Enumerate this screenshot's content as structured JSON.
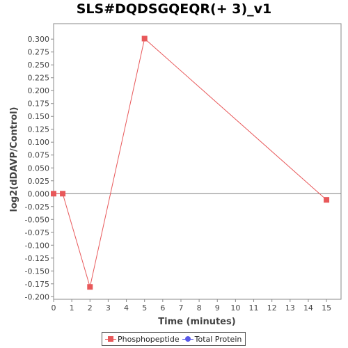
{
  "chart_data": {
    "type": "line",
    "title": "SLS#DQDSGQEQR(+ 3)_v1",
    "xlabel": "Time (minutes)",
    "ylabel": "log2(dDAVP/Control)",
    "xlim": [
      0,
      15.8
    ],
    "ylim": [
      -0.205,
      0.33
    ],
    "x_ticks": [
      0,
      1,
      2,
      3,
      4,
      5,
      6,
      7,
      8,
      9,
      10,
      11,
      12,
      13,
      14,
      15
    ],
    "y_ticks": [
      -0.2,
      -0.175,
      -0.15,
      -0.125,
      -0.1,
      -0.075,
      -0.05,
      -0.025,
      0.0,
      0.025,
      0.05,
      0.075,
      0.1,
      0.125,
      0.15,
      0.175,
      0.2,
      0.225,
      0.25,
      0.275,
      0.3
    ],
    "y_tick_labels": [
      "-0.200",
      "-0.175",
      "-0.150",
      "-0.125",
      "-0.100",
      "-0.075",
      "-0.050",
      "-0.025",
      "0.000",
      "0.025",
      "0.050",
      "0.075",
      "0.100",
      "0.125",
      "0.150",
      "0.175",
      "0.200",
      "0.225",
      "0.250",
      "0.275",
      "0.300"
    ],
    "zero_line": true,
    "grid": false,
    "legend_position": "bottom",
    "series": [
      {
        "name": "Phosphopeptide",
        "color": "#e8585a",
        "marker": "square",
        "x": [
          0,
          0.5,
          2,
          5,
          15
        ],
        "y": [
          0.0,
          0.0,
          -0.181,
          0.301,
          -0.012
        ]
      },
      {
        "name": "Total Protein",
        "color": "#5a5ae8",
        "marker": "circle",
        "x": [],
        "y": []
      }
    ]
  }
}
